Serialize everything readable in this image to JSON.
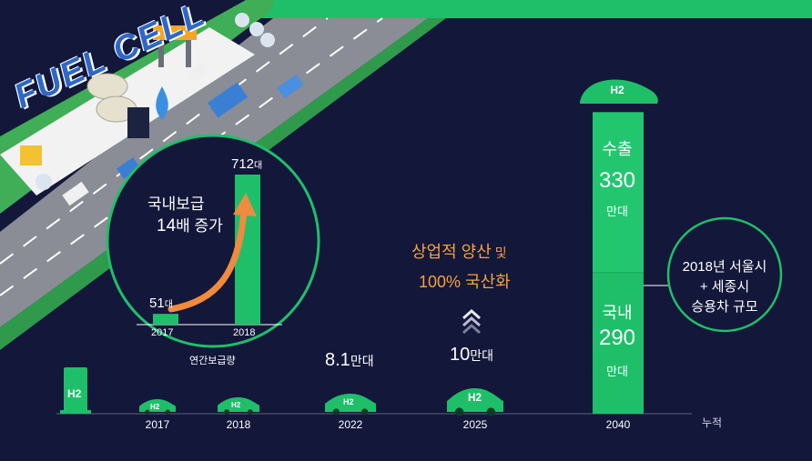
{
  "banner": {
    "title": "FUEL CELL"
  },
  "colors": {
    "background": "#13173a",
    "accent_green": "#1fbf6a",
    "headline_orange": "#f5a23c",
    "arrow_orange": "#f08a3e"
  },
  "inset": {
    "title_line1": "국내보급",
    "title_line2_num": "14",
    "title_line2_suffix": "배 증가",
    "caption": "연간보급량",
    "bars": [
      {
        "year": "2017",
        "value": 51,
        "value_label": "51",
        "unit": "대"
      },
      {
        "year": "2018",
        "value": 712,
        "value_label": "712",
        "unit": "대"
      }
    ]
  },
  "headline": {
    "line1_main": "상업적 양산",
    "line1_suffix": " 및",
    "line2": "100% 국산화"
  },
  "callout": {
    "line1": "2018년 서울시",
    "line2": "+ 세종시",
    "line3": "승용차 규모"
  },
  "bar_2040": {
    "export_label": "수출",
    "export_value": "330",
    "export_unit": "만대",
    "domestic_label": "국내",
    "domestic_value": "290",
    "domestic_unit": "만대",
    "car_icon_label": "H2"
  },
  "timeline": {
    "axis_note": "누적",
    "station_label": "H2",
    "points": [
      {
        "year": "2017",
        "value_label": "",
        "car_label": "H2"
      },
      {
        "year": "2018",
        "value_label": "",
        "car_label": "H2"
      },
      {
        "year": "2022",
        "value_label": "8.1",
        "value_unit": "만대",
        "car_label": "H2"
      },
      {
        "year": "2025",
        "value_label": "10",
        "value_unit": "만대",
        "car_label": "H2"
      },
      {
        "year": "2040",
        "value_label": "",
        "car_label": ""
      }
    ]
  },
  "chart_data": [
    {
      "type": "bar",
      "categories": [
        "2017",
        "2018"
      ],
      "values": [
        51,
        712
      ],
      "xlabel": "연간보급량"
    },
    {
      "type": "bar",
      "categories": [
        "2017",
        "2018",
        "2022",
        "2025",
        "2040"
      ],
      "series": [
        {
          "name": "국내",
          "values": [
            null,
            null,
            8.1,
            10,
            290
          ]
        },
        {
          "name": "수출",
          "values": [
            null,
            null,
            null,
            null,
            330
          ]
        }
      ],
      "xlabel": "누적",
      "ylabel": ""
    }
  ]
}
